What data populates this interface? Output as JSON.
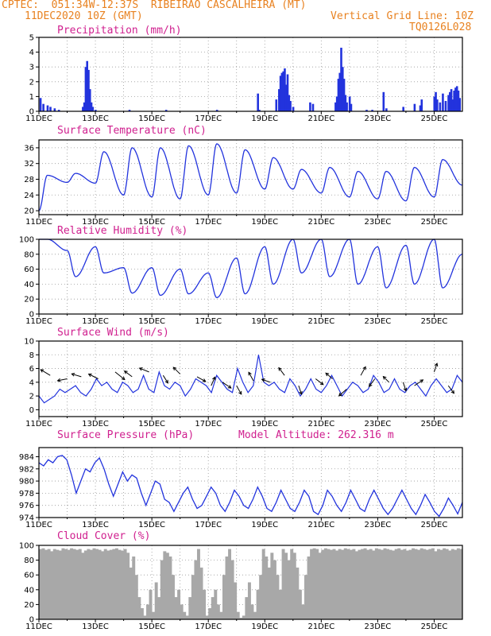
{
  "header": {
    "line1_left": "CPTEC:  051:34W-12:37S  RIBEIRAO CASCALHEIRA (MT)",
    "line2_left": "11DEC2020 10Z (GMT)",
    "line2_right": "Vertical Grid Line: 10Z",
    "line3_right": "TQ0126L028"
  },
  "colors": {
    "line": "#2233dd",
    "bar": "#2233dd",
    "cloud": "#a8a8a8",
    "title": "#d0208f",
    "header": "#e8811f"
  },
  "chart_data": [
    {
      "type": "bar",
      "title": "Precipitation (mm/h)",
      "ylim": [
        0,
        5
      ],
      "yticks": [
        0,
        1,
        2,
        3,
        4,
        5
      ],
      "xticks": [
        "11DEC",
        "13DEC",
        "15DEC",
        "17DEC",
        "19DEC",
        "21DEC",
        "23DEC",
        "25DEC"
      ],
      "x_days": [
        0,
        15
      ],
      "events": [
        [
          0.05,
          0.9
        ],
        [
          0.15,
          0.5
        ],
        [
          0.3,
          0.4
        ],
        [
          0.4,
          0.3
        ],
        [
          0.55,
          0.2
        ],
        [
          0.7,
          0.1
        ],
        [
          1.55,
          0.3
        ],
        [
          1.6,
          0.6
        ],
        [
          1.65,
          3.0
        ],
        [
          1.7,
          3.4
        ],
        [
          1.75,
          2.8
        ],
        [
          1.8,
          1.5
        ],
        [
          1.85,
          0.6
        ],
        [
          1.9,
          0.3
        ],
        [
          2.0,
          0.1
        ],
        [
          3.2,
          0.1
        ],
        [
          4.5,
          0.1
        ],
        [
          6.3,
          0.1
        ],
        [
          7.8,
          0.1
        ],
        [
          7.75,
          1.2
        ],
        [
          8.4,
          0.8
        ],
        [
          8.5,
          1.5
        ],
        [
          8.55,
          2.4
        ],
        [
          8.6,
          2.6
        ],
        [
          8.65,
          2.7
        ],
        [
          8.7,
          2.9
        ],
        [
          8.75,
          1.8
        ],
        [
          8.8,
          2.5
        ],
        [
          8.85,
          1.1
        ],
        [
          8.9,
          0.7
        ],
        [
          9.0,
          0.3
        ],
        [
          9.6,
          0.6
        ],
        [
          9.7,
          0.5
        ],
        [
          10.5,
          0.6
        ],
        [
          10.55,
          1.0
        ],
        [
          10.6,
          2.2
        ],
        [
          10.65,
          2.6
        ],
        [
          10.7,
          4.3
        ],
        [
          10.75,
          3.0
        ],
        [
          10.8,
          2.2
        ],
        [
          10.85,
          1.1
        ],
        [
          10.9,
          0.6
        ],
        [
          11.0,
          1.0
        ],
        [
          11.05,
          0.5
        ],
        [
          11.6,
          0.1
        ],
        [
          11.8,
          0.1
        ],
        [
          12.2,
          1.3
        ],
        [
          12.3,
          0.2
        ],
        [
          12.9,
          0.3
        ],
        [
          13.3,
          0.5
        ],
        [
          13.5,
          0.4
        ],
        [
          13.55,
          0.8
        ],
        [
          14.0,
          1.0
        ],
        [
          14.05,
          1.3
        ],
        [
          14.1,
          0.8
        ],
        [
          14.2,
          0.6
        ],
        [
          14.3,
          1.2
        ],
        [
          14.4,
          0.7
        ],
        [
          14.5,
          1.1
        ],
        [
          14.55,
          1.3
        ],
        [
          14.6,
          1.5
        ],
        [
          14.65,
          0.8
        ],
        [
          14.7,
          1.4
        ],
        [
          14.75,
          1.6
        ],
        [
          14.8,
          1.7
        ],
        [
          14.85,
          1.4
        ],
        [
          14.9,
          0.9
        ]
      ]
    },
    {
      "type": "line",
      "title": "Surface Temperature (nC)",
      "ylim": [
        19,
        38
      ],
      "yticks": [
        20,
        24,
        28,
        32,
        36
      ],
      "min_temps": [
        20.0,
        27.2,
        27.0,
        24.0,
        23.5,
        23.0,
        24.0,
        24.5,
        25.5,
        25.5,
        24.5,
        23.5,
        23.0,
        22.5,
        23.5,
        26.5
      ],
      "max_temps": [
        29.0,
        29.5,
        35.0,
        36.0,
        36.0,
        36.5,
        37.0,
        35.5,
        33.5,
        30.5,
        31.0,
        30.0,
        30.0,
        31.0,
        33.0,
        27.5
      ]
    },
    {
      "type": "line",
      "title": "Relative Humidity (%)",
      "ylim": [
        0,
        100
      ],
      "yticks": [
        0,
        20,
        40,
        60,
        80,
        100
      ],
      "min_rh": [
        100,
        50,
        55,
        28,
        25,
        27,
        22,
        27,
        40,
        55,
        50,
        40,
        35,
        40,
        35,
        45
      ],
      "max_rh": [
        100,
        85,
        90,
        62,
        62,
        60,
        55,
        75,
        90,
        100,
        100,
        100,
        90,
        92,
        100,
        80
      ]
    },
    {
      "type": "line",
      "title": "Surface Wind (m/s)",
      "ylim": [
        -1,
        10
      ],
      "yticks": [
        0,
        2,
        4,
        6,
        8,
        10
      ],
      "wind": [
        2,
        1,
        1.5,
        2,
        3,
        2.5,
        3,
        3.5,
        2.5,
        2,
        3,
        4.5,
        3.5,
        4,
        3,
        2.5,
        4,
        3.5,
        2.5,
        3,
        5,
        3,
        2.5,
        5.5,
        3.5,
        3,
        4,
        3.5,
        2,
        3,
        4.5,
        4,
        3.5,
        2.5,
        5,
        4,
        3,
        2.5,
        6,
        4,
        2.5,
        3.5,
        8,
        4,
        3.5,
        4,
        3,
        2.5,
        4.5,
        3.5,
        2,
        3,
        4.5,
        3,
        2.5,
        3.5,
        5,
        3.5,
        2,
        3,
        4,
        3.5,
        2.5,
        3,
        5,
        4,
        2.5,
        3,
        4.5,
        3,
        2.5,
        3.5,
        4,
        3,
        2,
        3.5,
        4.5,
        3.5,
        2.5,
        3,
        5,
        4
      ],
      "arrows": [
        [
          0.4,
          5,
          -1,
          0.6
        ],
        [
          1.0,
          4.5,
          -1,
          -0.2
        ],
        [
          1.5,
          4.8,
          -1,
          0.3
        ],
        [
          2.1,
          4.5,
          -1,
          0.5
        ],
        [
          2.7,
          5.5,
          1,
          -0.8
        ],
        [
          3.3,
          4.8,
          -0.8,
          0.6
        ],
        [
          3.9,
          5.5,
          -1,
          0.4
        ],
        [
          4.4,
          5,
          0.5,
          -0.8
        ],
        [
          5.0,
          5.2,
          -0.7,
          0.7
        ],
        [
          5.6,
          4.8,
          0.9,
          -0.5
        ],
        [
          6.1,
          3.5,
          0.4,
          0.9
        ],
        [
          6.5,
          4,
          0.9,
          -0.6
        ],
        [
          7.0,
          3.5,
          0.5,
          -0.9
        ],
        [
          7.6,
          4.2,
          -0.5,
          0.9
        ],
        [
          8.2,
          4,
          -0.9,
          0.3
        ],
        [
          8.7,
          5,
          -0.6,
          0.8
        ],
        [
          9.2,
          3.5,
          0.3,
          -0.9
        ],
        [
          9.8,
          4.5,
          0.8,
          -0.6
        ],
        [
          10.4,
          4.5,
          -0.7,
          0.6
        ],
        [
          10.9,
          3,
          -0.8,
          -0.7
        ],
        [
          11.4,
          5,
          0.5,
          0.9
        ],
        [
          11.9,
          4.5,
          -0.6,
          -0.8
        ],
        [
          12.4,
          4,
          -0.6,
          0.6
        ],
        [
          12.9,
          4,
          0.3,
          -0.9
        ],
        [
          13.3,
          3.5,
          0.9,
          0.6
        ],
        [
          14.0,
          5.5,
          0.3,
          0.9
        ],
        [
          14.5,
          3.5,
          0.6,
          -0.8
        ]
      ]
    },
    {
      "type": "line",
      "title": "Surface Pressure (hPa)",
      "annotation": "Model Altitude: 262.316 m",
      "ylim": [
        974,
        985.5
      ],
      "yticks": [
        974,
        976,
        978,
        980,
        982,
        984
      ],
      "pressure": [
        983,
        982.5,
        983.5,
        983,
        984,
        984.2,
        983.5,
        981,
        978,
        980,
        982,
        981.5,
        983,
        983.8,
        982,
        979.5,
        977.5,
        979.5,
        981.5,
        980,
        981,
        980.5,
        978,
        976,
        978,
        980,
        979.5,
        977,
        976.5,
        975,
        976.5,
        978,
        979,
        977,
        975.5,
        976,
        977.5,
        979,
        978,
        976,
        975,
        976.5,
        978.5,
        977.5,
        976,
        975.5,
        977,
        979,
        977.5,
        975.5,
        975,
        976.5,
        978.5,
        977,
        975.5,
        975,
        976.5,
        978.5,
        977.5,
        975,
        974.5,
        976,
        978.5,
        977.5,
        976,
        975,
        976.5,
        978.5,
        977,
        975.5,
        975,
        977,
        978.5,
        977,
        975.5,
        974.5,
        975.5,
        977,
        978.5,
        977,
        975.5,
        974.5,
        976,
        977.8,
        976.5,
        975,
        974.2,
        975.5,
        977.2,
        976,
        974.6,
        976.5
      ]
    },
    {
      "type": "area",
      "title": "Cloud Cover (%)",
      "ylim": [
        0,
        100
      ],
      "yticks": [
        0,
        20,
        40,
        60,
        80,
        100
      ],
      "cloud": [
        95,
        96,
        94,
        95,
        92,
        95,
        94,
        93,
        96,
        95,
        94,
        96,
        95,
        94,
        95,
        90,
        93,
        95,
        94,
        96,
        95,
        94,
        92,
        95,
        93,
        94,
        95,
        96,
        94,
        93,
        95,
        90,
        70,
        85,
        60,
        30,
        15,
        5,
        20,
        40,
        10,
        50,
        30,
        80,
        92,
        90,
        85,
        60,
        30,
        40,
        20,
        10,
        5,
        30,
        60,
        80,
        95,
        70,
        40,
        5,
        15,
        30,
        40,
        20,
        10,
        60,
        85,
        95,
        80,
        50,
        10,
        2,
        5,
        30,
        50,
        20,
        10,
        40,
        60,
        95,
        85,
        70,
        90,
        80,
        60,
        40,
        95,
        90,
        80,
        95,
        90,
        70,
        40,
        20,
        60,
        85,
        95,
        96,
        95,
        90,
        94,
        96,
        95,
        94,
        95,
        93,
        95,
        94,
        96,
        95,
        94,
        95,
        92,
        94,
        95,
        96,
        94,
        95,
        93,
        96,
        95,
        94,
        96,
        95,
        94,
        93,
        95,
        96,
        94,
        95,
        93,
        94,
        96,
        95,
        94,
        96,
        95,
        94,
        95,
        96,
        92,
        95,
        94,
        96,
        95,
        93,
        95,
        94,
        96,
        95
      ]
    }
  ]
}
